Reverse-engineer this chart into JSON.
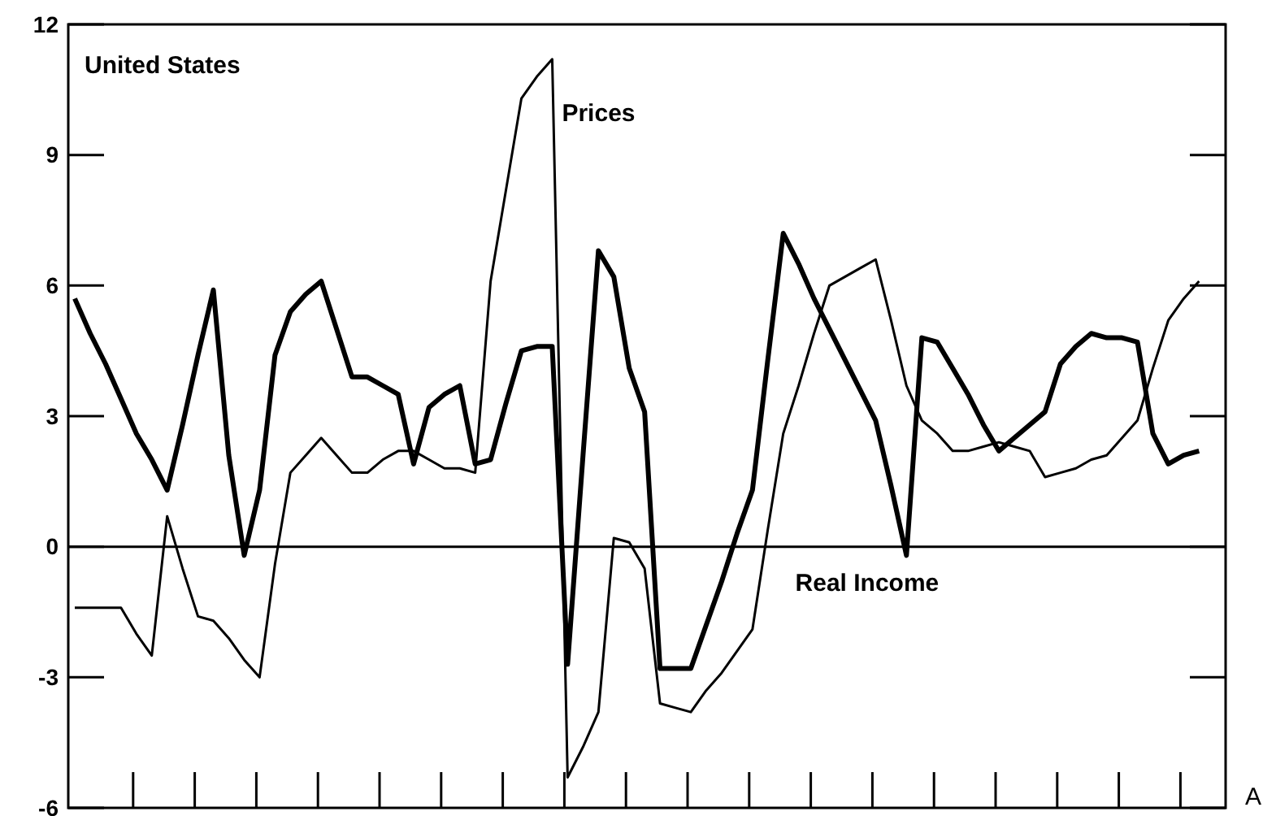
{
  "chart_data": {
    "type": "line",
    "title": "United States",
    "annotations": [
      "A"
    ],
    "categories": [
      null,
      null,
      null,
      null,
      null,
      null,
      null,
      null,
      null,
      null,
      null,
      null,
      null,
      null,
      null,
      null,
      null,
      null,
      null,
      null,
      null,
      null,
      null,
      null,
      null,
      null,
      null,
      null,
      null,
      null,
      null,
      null,
      null,
      null,
      null,
      null,
      null,
      null,
      null,
      null,
      null,
      null,
      null,
      null,
      null,
      null,
      null,
      null,
      null,
      null,
      null,
      null,
      null,
      null,
      null,
      null,
      null,
      null,
      null,
      null,
      null,
      null,
      null,
      null,
      null,
      null,
      null,
      null,
      null,
      null,
      null,
      null,
      null,
      null
    ],
    "ylim": [
      -6,
      12
    ],
    "yticks": [
      -6,
      -3,
      0,
      3,
      6,
      9,
      12
    ],
    "tick_labels": "y",
    "grid": false,
    "legend": false,
    "line_style": "solid",
    "marker": "none",
    "ref_lines": [
      {
        "axis": "y",
        "value": 0,
        "color": "#000000"
      }
    ],
    "series": [
      {
        "name": "Real Income",
        "color": "#000000",
        "values": [
          5.7,
          4.9,
          4.2,
          3.4,
          2.6,
          2.0,
          1.3,
          2.8,
          4.4,
          5.9,
          2.1,
          -0.2,
          1.3,
          4.4,
          5.4,
          5.8,
          6.1,
          5.0,
          3.9,
          3.9,
          3.7,
          3.5,
          1.9,
          3.2,
          3.5,
          3.7,
          1.9,
          2.0,
          3.3,
          4.5,
          4.6,
          4.6,
          -2.7,
          2.1,
          6.8,
          6.2,
          4.1,
          3.1,
          -2.8,
          -2.8,
          -2.8,
          -1.8,
          -0.8,
          0.3,
          1.3,
          4.3,
          7.2,
          6.5,
          5.7,
          5.0,
          4.3,
          3.6,
          2.9,
          1.4,
          -0.2,
          4.8,
          4.7,
          4.1,
          3.5,
          2.8,
          2.2,
          2.5,
          2.8,
          3.1,
          4.2,
          4.6,
          4.9,
          4.8,
          4.8,
          4.7,
          2.6,
          1.9,
          2.1,
          2.2
        ]
      },
      {
        "name": "Prices",
        "color": "#000000",
        "values": [
          -1.4,
          -1.4,
          -1.4,
          -1.4,
          -2.0,
          -2.5,
          0.7,
          -0.5,
          -1.6,
          -1.7,
          -2.1,
          -2.6,
          -3.0,
          -0.4,
          1.7,
          2.1,
          2.5,
          2.1,
          1.7,
          1.7,
          2.0,
          2.2,
          2.2,
          2.0,
          1.8,
          1.8,
          1.7,
          6.1,
          8.2,
          10.3,
          10.8,
          11.2,
          -5.3,
          -4.6,
          -3.8,
          0.2,
          0.1,
          -0.5,
          -3.6,
          -3.7,
          -3.8,
          -3.3,
          -2.9,
          -2.4,
          -1.9,
          0.4,
          2.6,
          3.7,
          4.9,
          6.0,
          6.2,
          6.4,
          6.6,
          5.2,
          3.7,
          2.9,
          2.6,
          2.2,
          2.2,
          2.3,
          2.4,
          2.3,
          2.2,
          1.6,
          1.7,
          1.8,
          2.0,
          2.1,
          2.5,
          2.9,
          4.1,
          5.2,
          5.7,
          6.1
        ]
      }
    ]
  }
}
